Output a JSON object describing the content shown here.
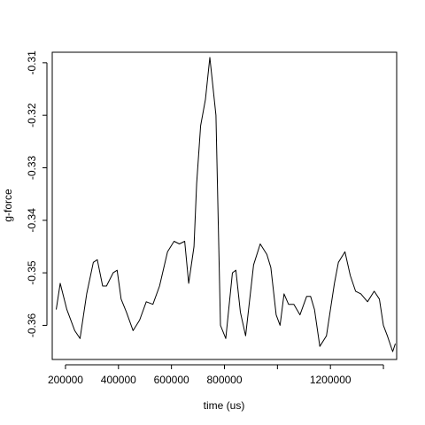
{
  "chart_data": {
    "type": "line",
    "title": "",
    "xlabel": "time (us)",
    "ylabel": "g-force",
    "xlim": [
      150000,
      1450000
    ],
    "ylim": [
      -0.3665,
      -0.308
    ],
    "x_ticks": [
      200000,
      400000,
      600000,
      800000,
      1000000,
      1200000,
      1400000
    ],
    "x_tick_labels": [
      "200000",
      "400000",
      "600000",
      "800000",
      "",
      "1200000",
      ""
    ],
    "y_ticks": [
      -0.31,
      -0.32,
      -0.33,
      -0.34,
      -0.35,
      -0.36
    ],
    "y_tick_labels": [
      "-0.31",
      "-0.32",
      "-0.33",
      "-0.34",
      "-0.35",
      "-0.36"
    ],
    "grid": false,
    "series": [
      {
        "color": "#000000",
        "x": [
          165000,
          180000,
          205000,
          235000,
          255000,
          280000,
          305000,
          320000,
          340000,
          355000,
          380000,
          395000,
          410000,
          430000,
          455000,
          480000,
          505000,
          530000,
          555000,
          585000,
          610000,
          630000,
          650000,
          665000,
          685000,
          695000,
          710000,
          728000,
          745000,
          768000,
          785000,
          805000,
          830000,
          843000,
          860000,
          880000,
          910000,
          935000,
          960000,
          975000,
          995000,
          1010000,
          1025000,
          1042000,
          1062000,
          1085000,
          1110000,
          1125000,
          1140000,
          1160000,
          1185000,
          1200000,
          1215000,
          1230000,
          1255000,
          1275000,
          1295000,
          1315000,
          1340000,
          1365000,
          1385000,
          1400000,
          1415000,
          1435000,
          1445000
        ],
        "y": [
          -0.357,
          -0.352,
          -0.357,
          -0.361,
          -0.3625,
          -0.354,
          -0.348,
          -0.3475,
          -0.3525,
          -0.3525,
          -0.35,
          -0.3495,
          -0.355,
          -0.3575,
          -0.361,
          -0.359,
          -0.3555,
          -0.356,
          -0.3525,
          -0.346,
          -0.344,
          -0.3445,
          -0.344,
          -0.352,
          -0.345,
          -0.333,
          -0.322,
          -0.317,
          -0.309,
          -0.32,
          -0.36,
          -0.3625,
          -0.35,
          -0.3495,
          -0.3575,
          -0.362,
          -0.3485,
          -0.3445,
          -0.3465,
          -0.349,
          -0.358,
          -0.36,
          -0.354,
          -0.356,
          -0.356,
          -0.358,
          -0.3545,
          -0.3545,
          -0.357,
          -0.364,
          -0.362,
          -0.357,
          -0.352,
          -0.348,
          -0.346,
          -0.3505,
          -0.3535,
          -0.354,
          -0.3555,
          -0.3535,
          -0.355,
          -0.36,
          -0.362,
          -0.365,
          -0.3635
        ]
      }
    ]
  }
}
